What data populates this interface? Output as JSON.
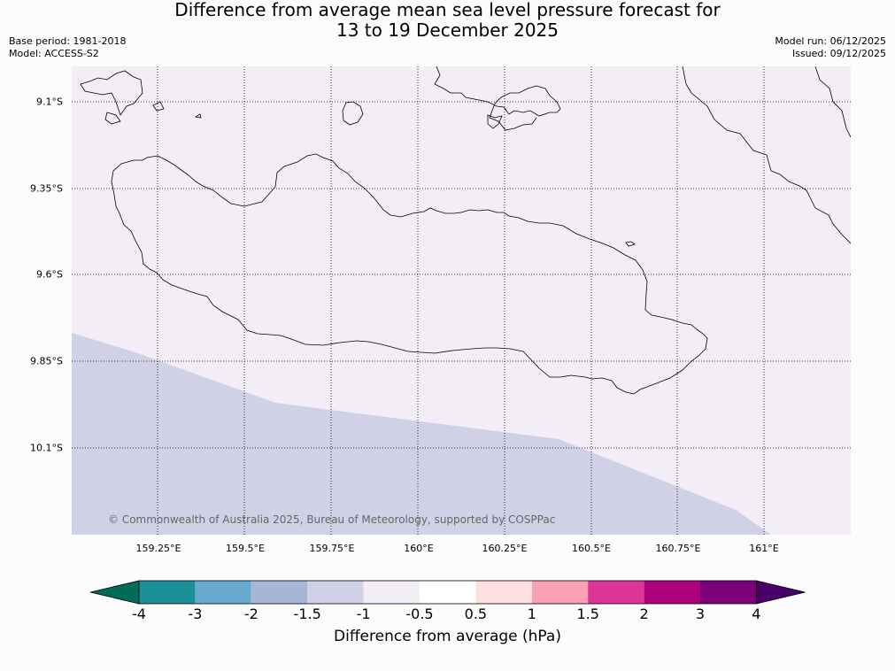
{
  "title": {
    "line1": "Difference from average mean sea level pressure forecast for",
    "line2": "13 to 19 December 2025"
  },
  "info": {
    "base_period": "Base period: 1981-2018",
    "model": "Model: ACCESS-S2",
    "model_run": "Model run: 06/12/2025",
    "issued": "Issued: 09/12/2025"
  },
  "map": {
    "copyright": "© Commonwealth of Australia 2025, Bureau of Meteorology, supported by COSPPac",
    "lat_labels": [
      "9.1°S",
      "9.35°S",
      "9.6°S",
      "9.85°S",
      "10.1°S"
    ],
    "lon_labels": [
      "159.25°E",
      "159.5°E",
      "159.75°E",
      "160°E",
      "160.25°E",
      "160.5°E",
      "160.75°E",
      "161°E"
    ],
    "field": [
      {
        "range": "-1.5 to -1",
        "color": "#d0d1e6",
        "region": "southwest"
      },
      {
        "range": "-1 to -0.5",
        "color": "#f3edf6",
        "region": "remainder"
      }
    ]
  },
  "colorbar": {
    "label": "Difference from average (hPa)",
    "ticks": [
      "-4",
      "-3",
      "-2",
      "-1.5",
      "-1",
      "-0.5",
      "0.5",
      "1",
      "1.5",
      "2",
      "3",
      "4"
    ],
    "colors": [
      "#1b9096",
      "#67a9cf",
      "#a6b6d4",
      "#d0d1e6",
      "#f3edf6",
      "#ffffff",
      "#fde0dd",
      "#fa9fb5",
      "#dd3497",
      "#ae017e",
      "#7a0177"
    ],
    "extend_low_color": "#016c59",
    "extend_high_color": "#49006a"
  }
}
